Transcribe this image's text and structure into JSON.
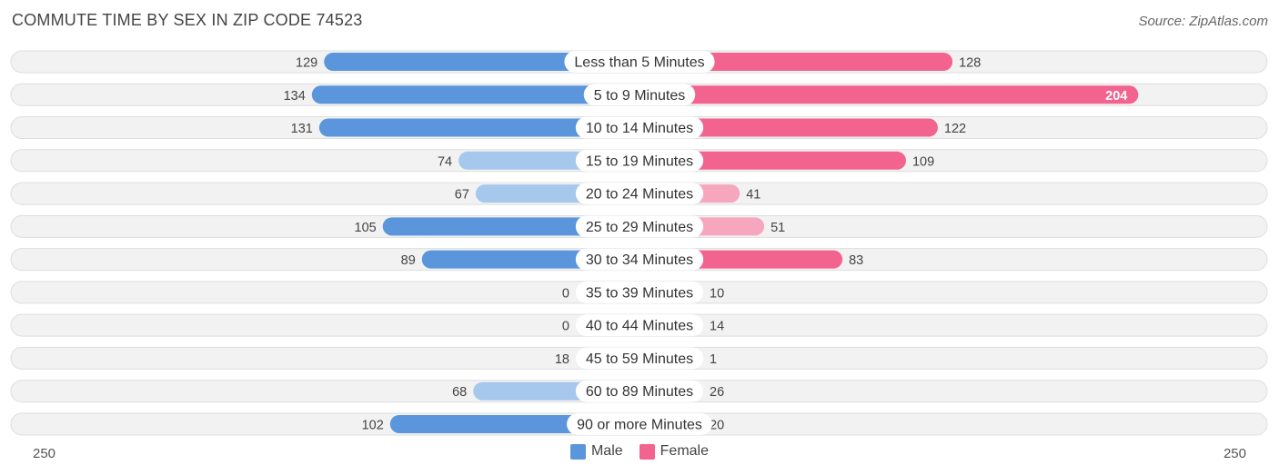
{
  "title": "COMMUTE TIME BY SEX IN ZIP CODE 74523",
  "source": "Source: ZipAtlas.com",
  "colors": {
    "male_strong": "#5b96dc",
    "male_light": "#a6c8ec",
    "female_strong": "#f2638f",
    "female_light": "#f7a6c0"
  },
  "legend": {
    "male": "Male",
    "female": "Female"
  },
  "chart_data": {
    "type": "bar",
    "orientation": "horizontal-diverging",
    "categories": [
      "Less than 5 Minutes",
      "5 to 9 Minutes",
      "10 to 14 Minutes",
      "15 to 19 Minutes",
      "20 to 24 Minutes",
      "25 to 29 Minutes",
      "30 to 34 Minutes",
      "35 to 39 Minutes",
      "40 to 44 Minutes",
      "45 to 59 Minutes",
      "60 to 89 Minutes",
      "90 or more Minutes"
    ],
    "series": [
      {
        "name": "Male",
        "values": [
          129,
          134,
          131,
          74,
          67,
          105,
          89,
          0,
          0,
          18,
          68,
          102
        ]
      },
      {
        "name": "Female",
        "values": [
          128,
          204,
          122,
          109,
          41,
          51,
          83,
          10,
          14,
          1,
          26,
          20
        ]
      }
    ],
    "axis_min_label": "250",
    "axis_max_label": "250",
    "xlim": [
      -250,
      250
    ],
    "legend_position": "bottom-center",
    "grid": false
  }
}
